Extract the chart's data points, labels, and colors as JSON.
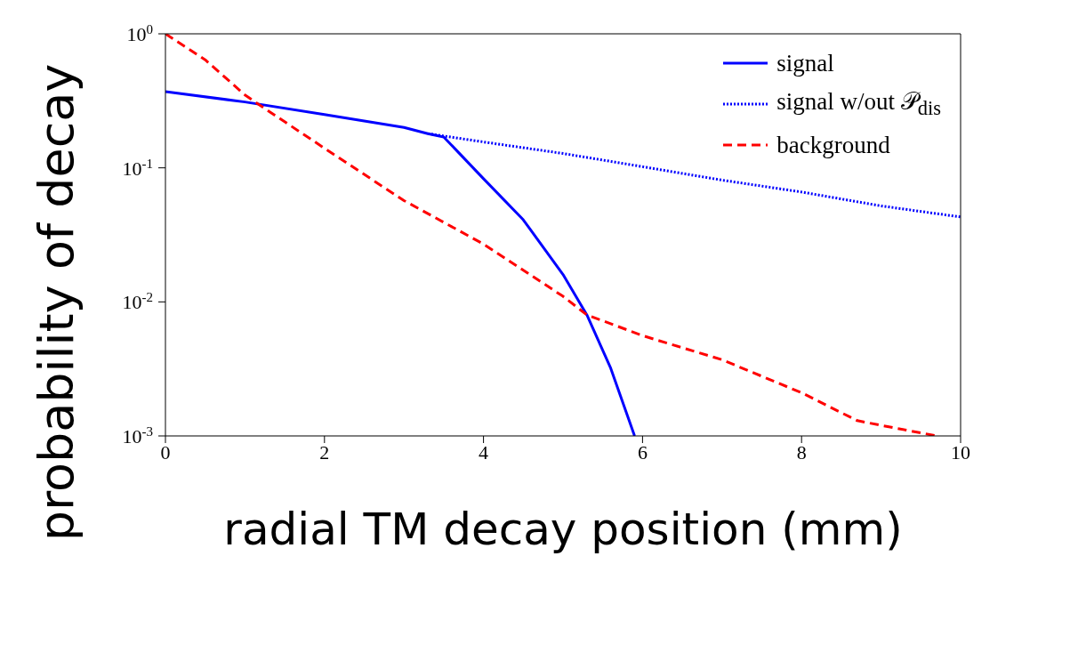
{
  "chart_data": {
    "type": "line",
    "xlabel": "radial TM decay position (mm)",
    "ylabel": "probability of decay",
    "log": "y",
    "xlim": [
      0,
      10
    ],
    "xticks": [
      0,
      2,
      4,
      6,
      8,
      10
    ],
    "ylim": [
      0.001,
      1
    ],
    "yticks": [
      {
        "value": 0.001,
        "label": "10$^{-3}$"
      },
      {
        "value": 0.01,
        "label": "10$^{-2}$"
      },
      {
        "value": 0.1,
        "label": "10$^{-1}$"
      },
      {
        "value": 1,
        "label": "10$^{0}$"
      }
    ],
    "grid": false,
    "legend": "top right",
    "marker": "none",
    "series": [
      {
        "name": "signal",
        "color": "#0000ff",
        "line_style": "solid",
        "x": [
          0,
          1,
          2,
          3,
          3.3,
          3.5,
          4,
          4.5,
          5,
          5.3,
          5.6,
          5.9
        ],
        "values": [
          0.37,
          0.31,
          0.25,
          0.2,
          0.18,
          0.17,
          0.083,
          0.041,
          0.016,
          0.008,
          0.0032,
          0.001
        ]
      },
      {
        "name": "signal w/out 𝒫$_{dis}$",
        "color": "#0000ff",
        "line_style": "dotted",
        "x": [
          3.3,
          4,
          5,
          6,
          7,
          8,
          9,
          10
        ],
        "values": [
          0.18,
          0.156,
          0.128,
          0.102,
          0.081,
          0.066,
          0.052,
          0.043
        ]
      },
      {
        "name": "background",
        "color": "#ff0000",
        "line_style": "dashed",
        "x": [
          0,
          0.5,
          1,
          1.2,
          2,
          3,
          4,
          5,
          5.3,
          6,
          7,
          8,
          8.7,
          9,
          9.7
        ],
        "values": [
          1,
          0.64,
          0.35,
          0.29,
          0.14,
          0.057,
          0.027,
          0.011,
          0.008,
          0.0056,
          0.0037,
          0.0021,
          0.0013,
          0.0012,
          0.001
        ]
      }
    ]
  }
}
